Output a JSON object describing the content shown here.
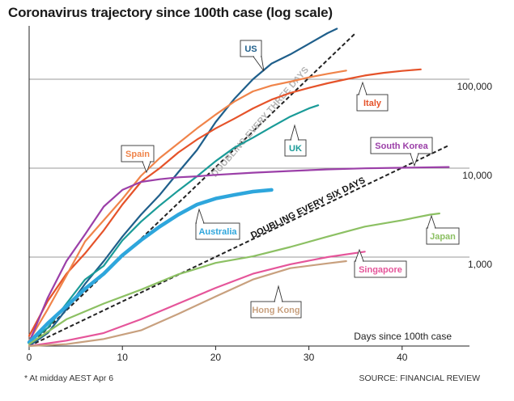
{
  "chart_data": {
    "type": "line",
    "title": "Coronavirus trajectory since 100th case (log scale)",
    "xlabel": "Days since 100th case",
    "ylabel": "",
    "xlim": [
      0,
      47
    ],
    "ylim": [
      100,
      400000
    ],
    "yscale": "log",
    "x_ticks": [
      0,
      10,
      20,
      30,
      40
    ],
    "y_ticks": [
      1000,
      10000,
      100000
    ],
    "y_tick_labels": [
      "1,000",
      "10,000",
      "100,000"
    ],
    "grid": "horizontal",
    "series": [
      {
        "name": "US",
        "color": "#1f5f8b",
        "x": [
          0,
          2,
          4,
          6,
          8,
          10,
          12,
          14,
          16,
          18,
          20,
          22,
          24,
          26,
          28,
          30,
          32,
          33
        ],
        "y": [
          100,
          140,
          260,
          500,
          900,
          1700,
          3000,
          5000,
          9000,
          16000,
          33000,
          60000,
          100000,
          150000,
          190000,
          250000,
          330000,
          370000
        ]
      },
      {
        "name": "Italy",
        "color": "#e5532a",
        "x": [
          0,
          2,
          4,
          6,
          8,
          10,
          12,
          14,
          16,
          18,
          20,
          22,
          24,
          26,
          28,
          30,
          32,
          34,
          36,
          38,
          40,
          42
        ],
        "y": [
          130,
          320,
          650,
          1100,
          2000,
          3900,
          7000,
          10000,
          15000,
          21000,
          28000,
          36000,
          47000,
          59000,
          70000,
          80000,
          90000,
          100000,
          110000,
          118000,
          124000,
          129000
        ]
      },
      {
        "name": "Spain",
        "color": "#f0844a",
        "x": [
          0,
          2,
          4,
          6,
          8,
          10,
          12,
          14,
          16,
          18,
          20,
          22,
          24,
          26,
          28,
          30,
          32,
          34
        ],
        "y": [
          115,
          260,
          620,
          1500,
          2600,
          4500,
          8200,
          13000,
          19000,
          28000,
          40000,
          56000,
          73000,
          85000,
          94000,
          105000,
          115000,
          125000
        ]
      },
      {
        "name": "UK",
        "color": "#1a9b98",
        "x": [
          0,
          2,
          4,
          6,
          8,
          10,
          12,
          14,
          16,
          18,
          20,
          22,
          24,
          26,
          28,
          30,
          31
        ],
        "y": [
          110,
          160,
          300,
          560,
          800,
          1540,
          2500,
          3800,
          5600,
          8100,
          12000,
          17000,
          22000,
          29000,
          38000,
          47000,
          51000
        ]
      },
      {
        "name": "South Korea",
        "color": "#9b3fa8",
        "x": [
          0,
          2,
          4,
          6,
          8,
          10,
          12,
          14,
          16,
          18,
          20,
          24,
          28,
          32,
          36,
          40,
          45
        ],
        "y": [
          110,
          350,
          900,
          1800,
          3700,
          5700,
          7000,
          7500,
          7900,
          8100,
          8400,
          8900,
          9300,
          9700,
          9950,
          10100,
          10300
        ]
      },
      {
        "name": "Australia",
        "color": "#2ea6dc",
        "x": [
          0,
          2,
          4,
          6,
          8,
          10,
          12,
          14,
          16,
          18,
          20,
          22,
          24,
          26
        ],
        "y": [
          110,
          180,
          280,
          440,
          650,
          1050,
          1550,
          2200,
          3000,
          3900,
          4550,
          5000,
          5450,
          5700
        ]
      },
      {
        "name": "Japan",
        "color": "#8cc063",
        "x": [
          0,
          4,
          8,
          12,
          16,
          20,
          24,
          28,
          32,
          36,
          40,
          43,
          44
        ],
        "y": [
          105,
          200,
          300,
          430,
          640,
          860,
          1020,
          1300,
          1700,
          2200,
          2600,
          3000,
          3100
        ]
      },
      {
        "name": "Singapore",
        "color": "#e5559a",
        "x": [
          0,
          4,
          8,
          12,
          16,
          20,
          24,
          28,
          32,
          36
        ],
        "y": [
          100,
          115,
          140,
          200,
          300,
          450,
          650,
          830,
          1000,
          1150
        ]
      },
      {
        "name": "Hong Kong",
        "color": "#c8a07e",
        "x": [
          0,
          4,
          8,
          12,
          16,
          20,
          24,
          28,
          32,
          34
        ],
        "y": [
          100,
          105,
          120,
          150,
          230,
          360,
          560,
          750,
          850,
          900
        ]
      }
    ],
    "guides": [
      {
        "label": "DOUBLING EVERY THREE DAYS",
        "x": [
          0,
          35
        ],
        "y": [
          100,
          330000
        ]
      },
      {
        "label": "DOUBLING EVERY SIX DAYS",
        "x": [
          0,
          45
        ],
        "y": [
          100,
          18000
        ]
      }
    ]
  },
  "footnote": "* At midday AEST Apr 6",
  "source": "SOURCE: FINANCIAL REVIEW"
}
